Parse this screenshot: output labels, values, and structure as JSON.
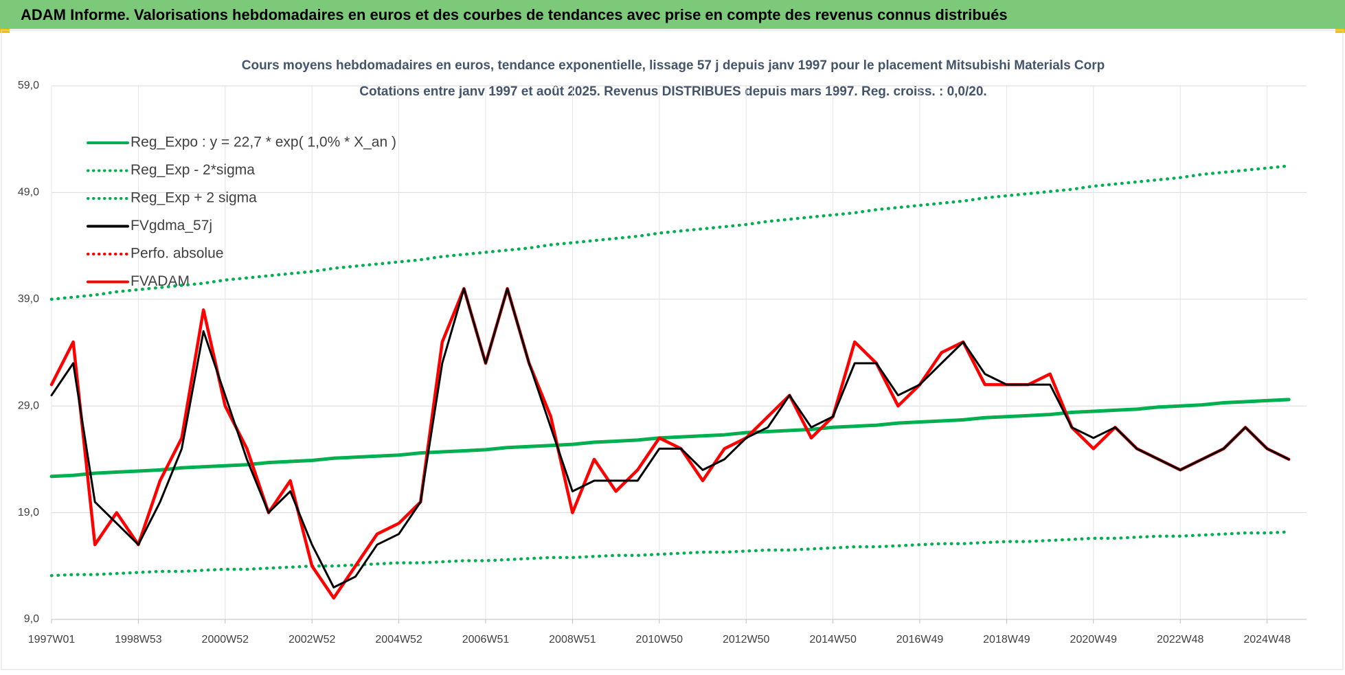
{
  "header": {
    "title": "ADAM Informe. Valorisations hebdomadaires en euros et des courbes de tendances avec prise en compte des revenus connus distribués"
  },
  "chart_data": {
    "type": "line",
    "title": "Cours moyens hebdomadaires en euros, tendance exponentielle, lissage 57 j depuis janv 1997 pour le placement Mitsubishi Materials Corp",
    "subtitle": "Cotations entre janv 1997 et août 2025.  Revenus DISTRIBUES depuis mars 1997. Reg. croiss. : 0,0/20.",
    "categories": [
      "1997W01",
      null,
      null,
      null,
      "1998W53",
      null,
      null,
      null,
      "2000W52",
      null,
      null,
      null,
      "2002W52",
      null,
      null,
      null,
      "2004W52",
      null,
      null,
      null,
      "2006W51",
      null,
      null,
      null,
      "2008W51",
      null,
      null,
      null,
      "2010W50",
      null,
      null,
      null,
      "2012W50",
      null,
      null,
      null,
      "2014W50",
      null,
      null,
      null,
      "2016W49",
      null,
      null,
      null,
      "2018W49",
      null,
      null,
      null,
      "2020W49",
      null,
      null,
      null,
      "2022W48",
      null,
      null,
      null,
      "2024W48",
      null
    ],
    "ylim": [
      9,
      59
    ],
    "yticks": [
      {
        "value": 9,
        "label": "9,0"
      },
      {
        "value": 19,
        "label": "19,0"
      },
      {
        "value": 29,
        "label": "29,0"
      },
      {
        "value": 39,
        "label": "39,0"
      },
      {
        "value": 49,
        "label": "49,0"
      },
      {
        "value": 59,
        "label": "59,0"
      }
    ],
    "grid": true,
    "legend": "upper left",
    "series": [
      {
        "name": "Reg_Expo : y = 22,7 * exp( 1,0% *  X_an )",
        "color": "#00b050",
        "style": "solid",
        "values": [
          22.4,
          22.5,
          22.7,
          22.8,
          22.9,
          23.0,
          23.2,
          23.3,
          23.4,
          23.5,
          23.7,
          23.8,
          23.9,
          24.1,
          24.2,
          24.3,
          24.4,
          24.6,
          24.7,
          24.8,
          24.9,
          25.1,
          25.2,
          25.3,
          25.4,
          25.6,
          25.7,
          25.8,
          26.0,
          26.1,
          26.2,
          26.3,
          26.5,
          26.6,
          26.7,
          26.8,
          27.0,
          27.1,
          27.2,
          27.4,
          27.5,
          27.6,
          27.7,
          27.9,
          28.0,
          28.1,
          28.2,
          28.4,
          28.5,
          28.6,
          28.7,
          28.9,
          29.0,
          29.1,
          29.3,
          29.4,
          29.5,
          29.6
        ]
      },
      {
        "name": "Reg_Exp - 2*sigma",
        "color": "#00b050",
        "style": "dotted",
        "values": [
          13.1,
          13.2,
          13.2,
          13.3,
          13.4,
          13.5,
          13.5,
          13.6,
          13.7,
          13.7,
          13.8,
          13.9,
          14.0,
          14.0,
          14.1,
          14.2,
          14.3,
          14.3,
          14.4,
          14.5,
          14.5,
          14.6,
          14.7,
          14.8,
          14.8,
          14.9,
          15.0,
          15.0,
          15.1,
          15.2,
          15.3,
          15.3,
          15.4,
          15.5,
          15.5,
          15.6,
          15.7,
          15.8,
          15.8,
          15.9,
          16.0,
          16.1,
          16.1,
          16.2,
          16.3,
          16.3,
          16.4,
          16.5,
          16.6,
          16.6,
          16.7,
          16.8,
          16.8,
          16.9,
          17.0,
          17.1,
          17.1,
          17.2
        ]
      },
      {
        "name": "Reg_Exp + 2 sigma",
        "color": "#00b050",
        "style": "dotted",
        "values": [
          39.0,
          39.2,
          39.4,
          39.7,
          39.9,
          40.1,
          40.3,
          40.5,
          40.8,
          41.0,
          41.2,
          41.4,
          41.6,
          41.9,
          42.1,
          42.3,
          42.5,
          42.7,
          43.0,
          43.2,
          43.4,
          43.6,
          43.8,
          44.1,
          44.3,
          44.5,
          44.7,
          44.9,
          45.2,
          45.4,
          45.6,
          45.8,
          46.0,
          46.3,
          46.5,
          46.7,
          46.9,
          47.1,
          47.4,
          47.6,
          47.8,
          48.0,
          48.2,
          48.5,
          48.7,
          48.9,
          49.1,
          49.3,
          49.6,
          49.8,
          50.0,
          50.2,
          50.4,
          50.7,
          50.9,
          51.1,
          51.3,
          51.5
        ]
      },
      {
        "name": "FVgdma_57j",
        "color": "#000000",
        "style": "solid",
        "values": [
          30,
          33,
          20,
          18,
          16,
          20,
          25,
          36,
          30,
          24,
          19,
          21,
          16,
          12,
          13,
          16,
          17,
          20,
          33,
          40,
          33,
          40,
          33,
          27,
          21,
          22,
          22,
          22,
          25,
          25,
          23,
          24,
          26,
          27,
          30,
          27,
          28,
          33,
          33,
          30,
          31,
          33,
          35,
          32,
          31,
          31,
          31,
          27,
          26,
          27,
          25,
          24,
          23,
          24,
          25,
          27,
          25,
          24
        ]
      },
      {
        "name": "Perfo. absolue",
        "color": "#ff0000",
        "style": "dotted",
        "values": [
          null,
          null,
          null,
          null,
          null,
          null,
          null,
          null,
          null,
          null,
          null,
          null,
          null,
          null,
          null,
          null,
          null,
          null,
          null,
          null,
          null,
          null,
          null,
          null,
          null,
          null,
          null,
          null,
          null,
          null,
          null,
          null,
          null,
          null,
          null,
          null,
          null,
          null,
          null,
          null,
          null,
          null,
          null,
          null,
          null,
          null,
          null,
          null,
          null,
          null,
          null,
          null,
          null,
          null,
          null,
          null,
          null,
          null
        ]
      },
      {
        "name": "FVADAM",
        "color": "#ff0000",
        "style": "solid",
        "values": [
          31,
          35,
          16,
          19,
          16,
          22,
          26,
          38,
          29,
          25,
          19,
          22,
          14,
          11,
          14,
          17,
          18,
          20,
          35,
          40,
          33,
          40,
          33,
          28,
          19,
          24,
          21,
          23,
          26,
          25,
          22,
          25,
          26,
          28,
          30,
          26,
          28,
          35,
          33,
          29,
          31,
          34,
          35,
          31,
          31,
          31,
          32,
          27,
          25,
          27,
          25,
          24,
          23,
          24,
          25,
          27,
          25,
          24
        ]
      }
    ]
  }
}
